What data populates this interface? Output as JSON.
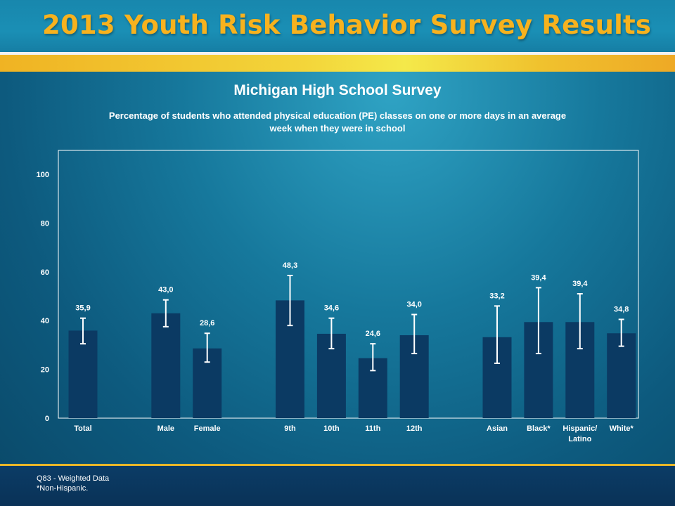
{
  "header": {
    "title": "2013 Youth Risk Behavior Survey Results"
  },
  "chart_data": {
    "type": "bar",
    "title": "Michigan High School Survey",
    "subtitle": "Percentage of students who attended physical education (PE) classes on one or more days in an average week when they were in school",
    "categories": [
      "Total",
      "Male",
      "Female",
      "9th",
      "10th",
      "11th",
      "12th",
      "Asian",
      "Black*",
      "Hispanic/ Latino",
      "White*"
    ],
    "category_lines": [
      [
        "Total"
      ],
      [
        "Male"
      ],
      [
        "Female"
      ],
      [
        "9th"
      ],
      [
        "10th"
      ],
      [
        "11th"
      ],
      [
        "12th"
      ],
      [
        "Asian"
      ],
      [
        "Black*"
      ],
      [
        "Hispanic/",
        "Latino"
      ],
      [
        "White*"
      ]
    ],
    "values": [
      35.9,
      43.0,
      28.6,
      48.3,
      34.6,
      24.6,
      34.0,
      33.2,
      39.4,
      39.4,
      34.8
    ],
    "value_labels": [
      "35,9",
      "43,0",
      "28,6",
      "48,3",
      "34,6",
      "24,6",
      "34,0",
      "33,2",
      "39,4",
      "39,4",
      "34,8"
    ],
    "error_low": [
      30.5,
      37.5,
      23.0,
      38.0,
      28.5,
      19.5,
      26.5,
      22.5,
      26.5,
      28.5,
      29.5
    ],
    "error_high": [
      41.0,
      48.5,
      34.8,
      58.5,
      41.0,
      30.5,
      42.5,
      46.0,
      53.5,
      51.0,
      40.5
    ],
    "groups": [
      [
        "Total"
      ],
      [
        "Male",
        "Female"
      ],
      [
        "9th",
        "10th",
        "11th",
        "12th"
      ],
      [
        "Asian",
        "Black*",
        "Hispanic/ Latino",
        "White*"
      ]
    ],
    "ylim": [
      0,
      110
    ],
    "yticks": [
      0,
      20,
      40,
      60,
      80,
      100
    ],
    "xlabel": "",
    "ylabel": "",
    "grid": false,
    "colors": {
      "bar": "#0b3a63",
      "error_bar": "#ffffff",
      "plot_border": "#ffffff"
    }
  },
  "footer": {
    "note1": "Q83 - Weighted Data",
    "note2": "*Non-Hispanic."
  }
}
